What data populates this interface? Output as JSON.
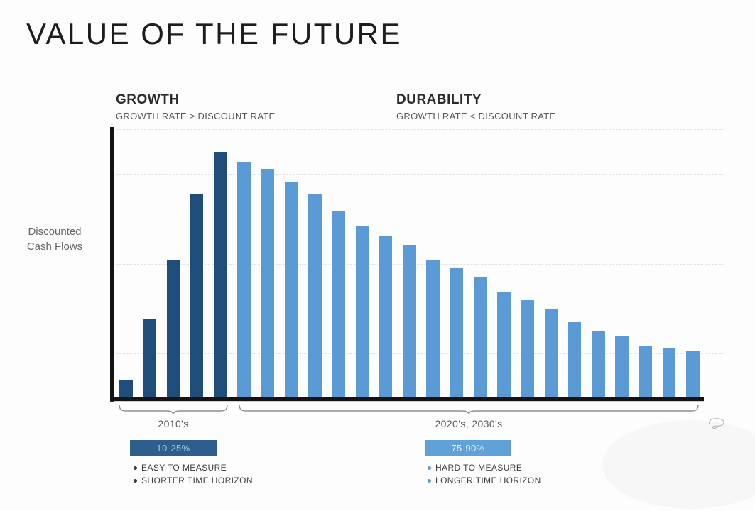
{
  "slide": {
    "title": "VALUE OF THE FUTURE",
    "y_axis_label": "Discounted\nCash Flows",
    "sections": {
      "growth": {
        "heading": "GROWTH",
        "subheading": "GROWTH RATE > DISCOUNT RATE",
        "era_label": "2010's",
        "badge": "10-25%",
        "bullets": [
          "EASY TO MEASURE",
          "SHORTER TIME HORIZON"
        ]
      },
      "durability": {
        "heading": "DURABILITY",
        "subheading": "GROWTH RATE < DISCOUNT RATE",
        "era_label": "2020's, 2030's",
        "badge": "75-90%",
        "bullets": [
          "HARD TO MEASURE",
          "LONGER TIME HORIZON"
        ]
      }
    }
  },
  "colors": {
    "growth_bar": "#1f4e7b",
    "durability_bar": "#5b9bd5",
    "growth_badge_bg": "#2d5e8d",
    "growth_badge_text": "#9fc0de",
    "durability_badge_bg": "#60a1d8",
    "durability_badge_text": "#e6f1fa",
    "axis": "#141414"
  },
  "chart_data": {
    "type": "bar",
    "title": "VALUE OF THE FUTURE",
    "xlabel": "",
    "ylabel": "Discounted Cash Flows",
    "y_units": "relative discounted cash flow (tallest bar = 100, no numeric axis shown)",
    "ylim": [
      0,
      110
    ],
    "grid": "horizontal dashed lines, no tick labels",
    "legend_position": "none",
    "groups": [
      {
        "label": "2010's",
        "annotation": "10-25%",
        "bar_count": 5
      },
      {
        "label": "2020's, 2030's",
        "annotation": "75-90%",
        "bar_count": 20
      }
    ],
    "series": [
      {
        "name": "GROWTH (growth rate > discount rate)",
        "color": "#1f4e7b",
        "values": [
          7,
          32,
          56,
          83,
          100
        ]
      },
      {
        "name": "DURABILITY (growth rate < discount rate)",
        "color": "#5b9bd5",
        "values": [
          96,
          93,
          88,
          83,
          76,
          70,
          66,
          62,
          56,
          53,
          49,
          43,
          40,
          36,
          31,
          27,
          25,
          21,
          20,
          19
        ]
      }
    ]
  }
}
